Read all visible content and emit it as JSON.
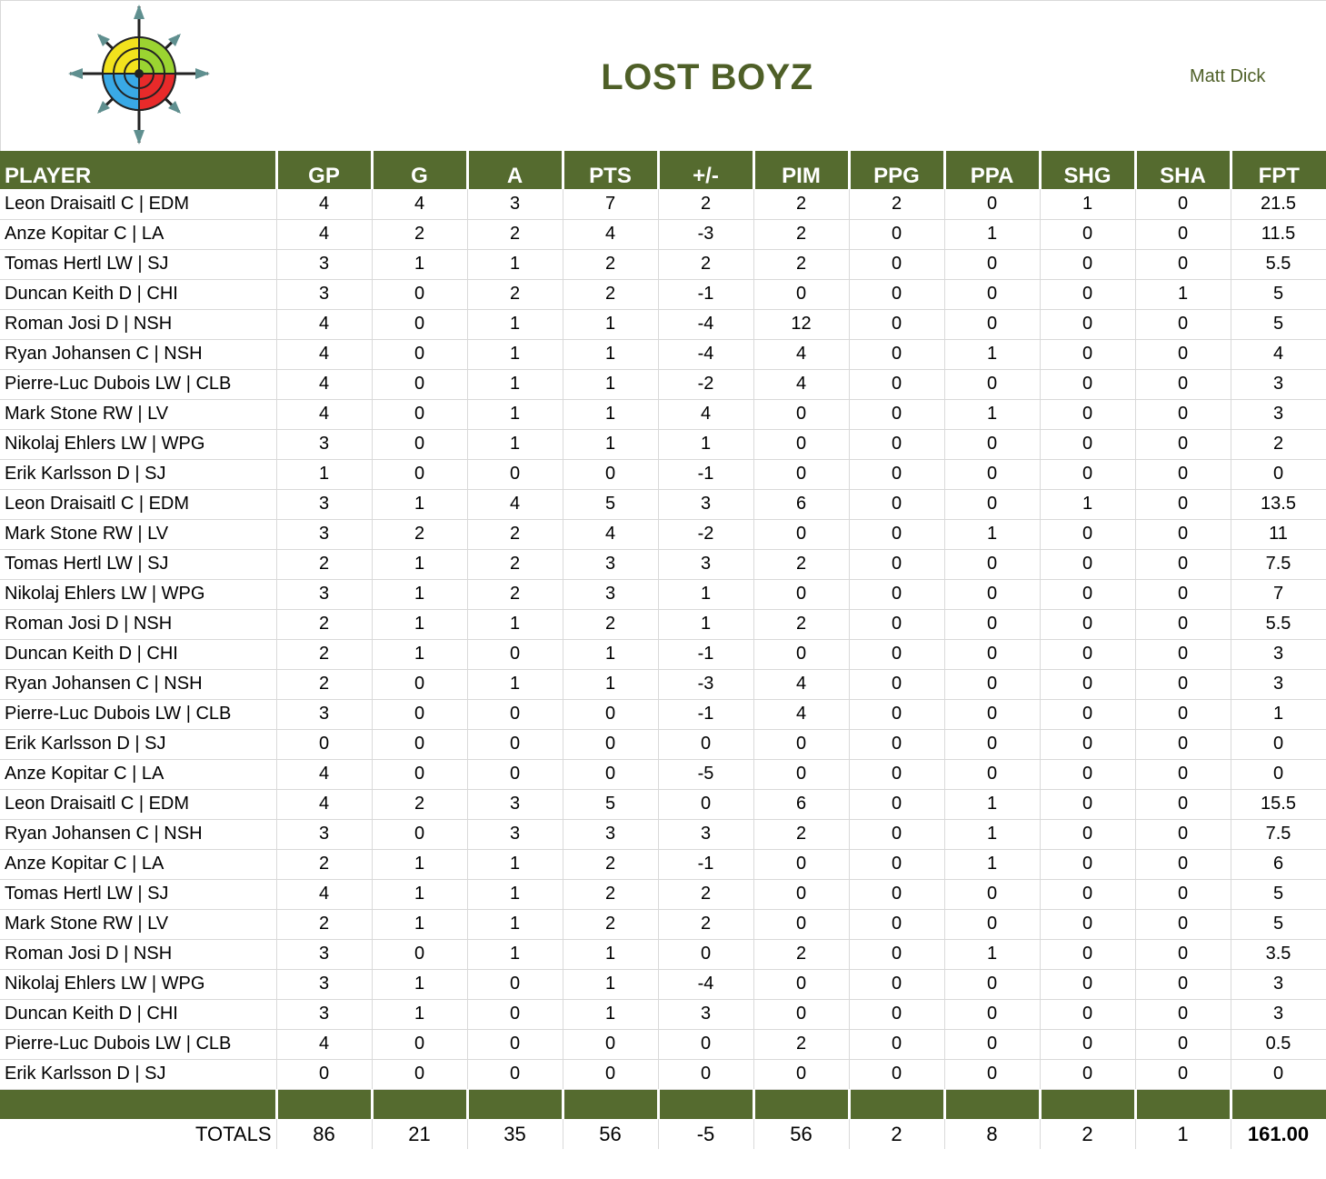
{
  "header": {
    "title": "LOST BOYZ",
    "owner": "Matt Dick"
  },
  "logo": {
    "icon": "compass-target-logo"
  },
  "columns": [
    "PLAYER",
    "GP",
    "G",
    "A",
    "PTS",
    "+/-",
    "PIM",
    "PPG",
    "PPA",
    "SHG",
    "SHA",
    "FPT"
  ],
  "rows": [
    [
      "Leon Draisaitl C | EDM",
      "4",
      "4",
      "3",
      "7",
      "2",
      "2",
      "2",
      "0",
      "1",
      "0",
      "21.5"
    ],
    [
      "Anze Kopitar C | LA",
      "4",
      "2",
      "2",
      "4",
      "-3",
      "2",
      "0",
      "1",
      "0",
      "0",
      "11.5"
    ],
    [
      "Tomas Hertl LW | SJ",
      "3",
      "1",
      "1",
      "2",
      "2",
      "2",
      "0",
      "0",
      "0",
      "0",
      "5.5"
    ],
    [
      "Duncan Keith D | CHI",
      "3",
      "0",
      "2",
      "2",
      "-1",
      "0",
      "0",
      "0",
      "0",
      "1",
      "5"
    ],
    [
      "Roman Josi D | NSH",
      "4",
      "0",
      "1",
      "1",
      "-4",
      "12",
      "0",
      "0",
      "0",
      "0",
      "5"
    ],
    [
      "Ryan Johansen C | NSH",
      "4",
      "0",
      "1",
      "1",
      "-4",
      "4",
      "0",
      "1",
      "0",
      "0",
      "4"
    ],
    [
      "Pierre-Luc Dubois LW | CLB",
      "4",
      "0",
      "1",
      "1",
      "-2",
      "4",
      "0",
      "0",
      "0",
      "0",
      "3"
    ],
    [
      "Mark Stone RW | LV",
      "4",
      "0",
      "1",
      "1",
      "4",
      "0",
      "0",
      "1",
      "0",
      "0",
      "3"
    ],
    [
      "Nikolaj Ehlers LW | WPG",
      "3",
      "0",
      "1",
      "1",
      "1",
      "0",
      "0",
      "0",
      "0",
      "0",
      "2"
    ],
    [
      "Erik Karlsson D | SJ",
      "1",
      "0",
      "0",
      "0",
      "-1",
      "0",
      "0",
      "0",
      "0",
      "0",
      "0"
    ],
    [
      "Leon Draisaitl C | EDM",
      "3",
      "1",
      "4",
      "5",
      "3",
      "6",
      "0",
      "0",
      "1",
      "0",
      "13.5"
    ],
    [
      "Mark Stone RW | LV",
      "3",
      "2",
      "2",
      "4",
      "-2",
      "0",
      "0",
      "1",
      "0",
      "0",
      "11"
    ],
    [
      "Tomas Hertl LW | SJ",
      "2",
      "1",
      "2",
      "3",
      "3",
      "2",
      "0",
      "0",
      "0",
      "0",
      "7.5"
    ],
    [
      "Nikolaj Ehlers LW | WPG",
      "3",
      "1",
      "2",
      "3",
      "1",
      "0",
      "0",
      "0",
      "0",
      "0",
      "7"
    ],
    [
      "Roman Josi D | NSH",
      "2",
      "1",
      "1",
      "2",
      "1",
      "2",
      "0",
      "0",
      "0",
      "0",
      "5.5"
    ],
    [
      "Duncan Keith D | CHI",
      "2",
      "1",
      "0",
      "1",
      "-1",
      "0",
      "0",
      "0",
      "0",
      "0",
      "3"
    ],
    [
      "Ryan Johansen C | NSH",
      "2",
      "0",
      "1",
      "1",
      "-3",
      "4",
      "0",
      "0",
      "0",
      "0",
      "3"
    ],
    [
      "Pierre-Luc Dubois LW | CLB",
      "3",
      "0",
      "0",
      "0",
      "-1",
      "4",
      "0",
      "0",
      "0",
      "0",
      "1"
    ],
    [
      "Erik Karlsson D | SJ",
      "0",
      "0",
      "0",
      "0",
      "0",
      "0",
      "0",
      "0",
      "0",
      "0",
      "0"
    ],
    [
      "Anze Kopitar C | LA",
      "4",
      "0",
      "0",
      "0",
      "-5",
      "0",
      "0",
      "0",
      "0",
      "0",
      "0"
    ],
    [
      "Leon Draisaitl C | EDM",
      "4",
      "2",
      "3",
      "5",
      "0",
      "6",
      "0",
      "1",
      "0",
      "0",
      "15.5"
    ],
    [
      "Ryan Johansen C | NSH",
      "3",
      "0",
      "3",
      "3",
      "3",
      "2",
      "0",
      "1",
      "0",
      "0",
      "7.5"
    ],
    [
      "Anze Kopitar C | LA",
      "2",
      "1",
      "1",
      "2",
      "-1",
      "0",
      "0",
      "1",
      "0",
      "0",
      "6"
    ],
    [
      "Tomas Hertl LW | SJ",
      "4",
      "1",
      "1",
      "2",
      "2",
      "0",
      "0",
      "0",
      "0",
      "0",
      "5"
    ],
    [
      "Mark Stone RW | LV",
      "2",
      "1",
      "1",
      "2",
      "2",
      "0",
      "0",
      "0",
      "0",
      "0",
      "5"
    ],
    [
      "Roman Josi D | NSH",
      "3",
      "0",
      "1",
      "1",
      "0",
      "2",
      "0",
      "1",
      "0",
      "0",
      "3.5"
    ],
    [
      "Nikolaj Ehlers LW | WPG",
      "3",
      "1",
      "0",
      "1",
      "-4",
      "0",
      "0",
      "0",
      "0",
      "0",
      "3"
    ],
    [
      "Duncan Keith D | CHI",
      "3",
      "1",
      "0",
      "1",
      "3",
      "0",
      "0",
      "0",
      "0",
      "0",
      "3"
    ],
    [
      "Pierre-Luc Dubois LW | CLB",
      "4",
      "0",
      "0",
      "0",
      "0",
      "2",
      "0",
      "0",
      "0",
      "0",
      "0.5"
    ],
    [
      "Erik Karlsson D | SJ",
      "0",
      "0",
      "0",
      "0",
      "0",
      "0",
      "0",
      "0",
      "0",
      "0",
      "0"
    ]
  ],
  "totals": [
    "TOTALS",
    "86",
    "21",
    "35",
    "56",
    "-5",
    "56",
    "2",
    "8",
    "2",
    "1",
    "161.00"
  ],
  "colors": {
    "header_bg": "#556b2f",
    "title": "#4e5f27",
    "grid": "#d9d9d9"
  }
}
